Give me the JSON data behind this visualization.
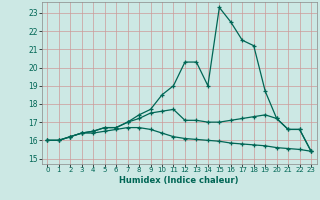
{
  "xlabel": "Humidex (Indice chaleur)",
  "background_color": "#cce8e4",
  "grid_color": "#cc9999",
  "line_color": "#006655",
  "spine_color": "#888888",
  "tick_color": "#006655",
  "x_ticks": [
    0,
    1,
    2,
    3,
    4,
    5,
    6,
    7,
    8,
    9,
    10,
    11,
    12,
    13,
    14,
    15,
    16,
    17,
    18,
    19,
    20,
    21,
    22,
    23
  ],
  "y_ticks": [
    15,
    16,
    17,
    18,
    19,
    20,
    21,
    22,
    23
  ],
  "ylim": [
    14.7,
    23.6
  ],
  "xlim": [
    -0.5,
    23.5
  ],
  "series": [
    [
      16.0,
      16.0,
      16.2,
      16.4,
      16.5,
      16.7,
      16.7,
      17.0,
      17.4,
      17.7,
      18.5,
      19.0,
      20.3,
      20.3,
      19.0,
      23.3,
      22.5,
      21.5,
      21.2,
      18.7,
      17.2,
      16.6,
      16.6,
      15.4
    ],
    [
      16.0,
      16.0,
      16.2,
      16.4,
      16.5,
      16.7,
      16.7,
      17.0,
      17.2,
      17.5,
      17.6,
      17.7,
      17.1,
      17.1,
      17.0,
      17.0,
      17.1,
      17.2,
      17.3,
      17.4,
      17.2,
      16.6,
      16.6,
      15.4
    ],
    [
      16.0,
      16.0,
      16.2,
      16.4,
      16.4,
      16.5,
      16.6,
      16.7,
      16.7,
      16.6,
      16.4,
      16.2,
      16.1,
      16.05,
      16.0,
      15.95,
      15.85,
      15.8,
      15.75,
      15.7,
      15.6,
      15.55,
      15.5,
      15.4
    ]
  ]
}
